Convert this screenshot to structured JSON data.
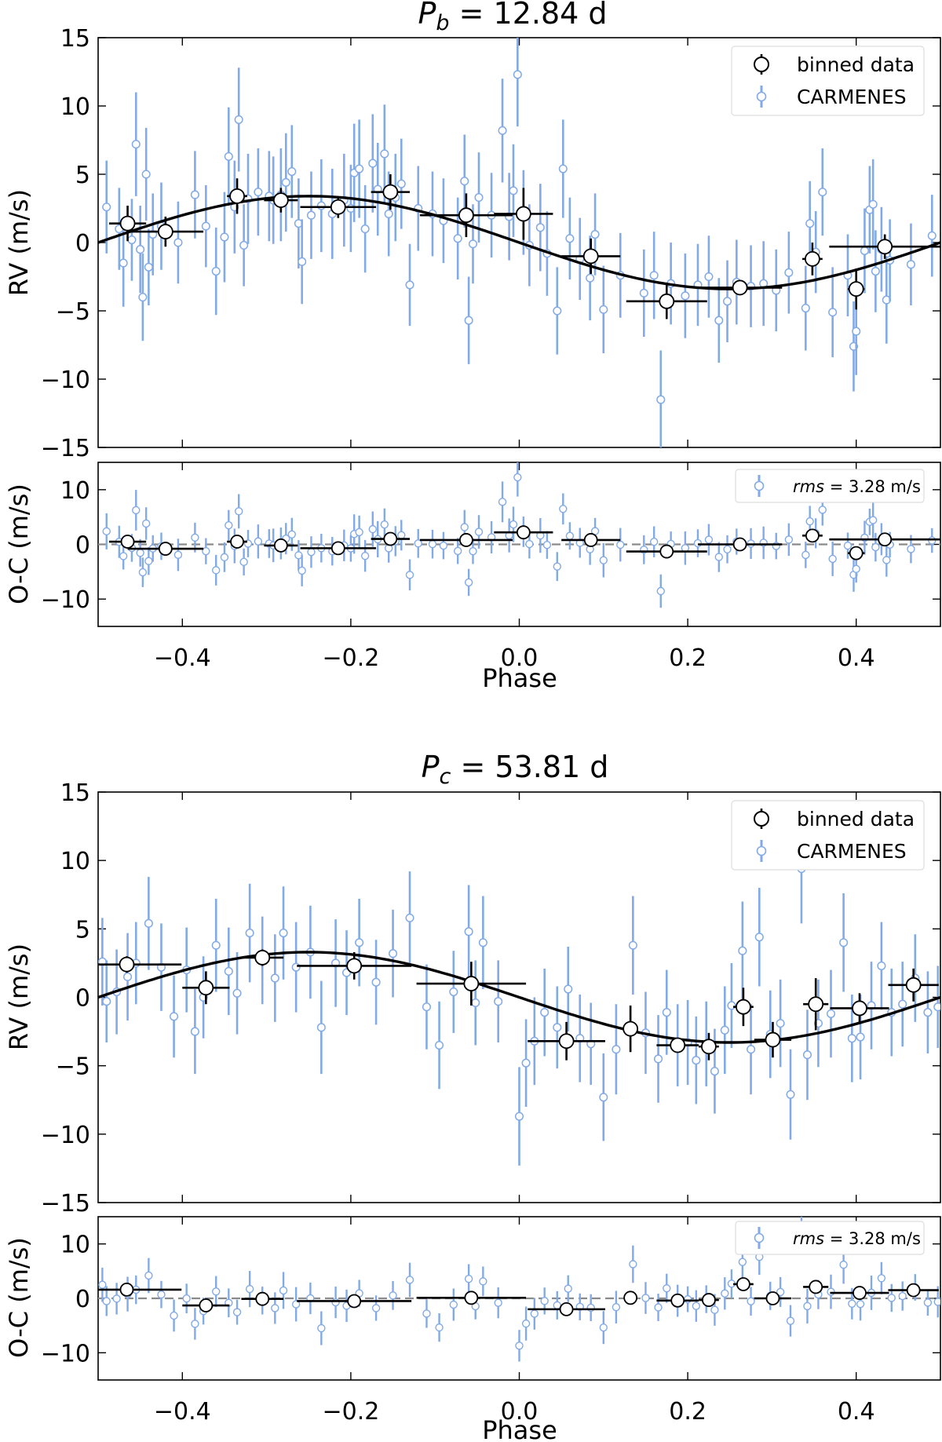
{
  "chart_data": [
    {
      "type": "scatter",
      "title": {
        "variable": "P",
        "subscript": "b",
        "rest": " = 12.84 d"
      },
      "xlabel": "Phase",
      "ylabel_main": "RV (m/s)",
      "ylabel_resid": "O-C (m/s)",
      "xlim": [
        -0.5,
        0.5
      ],
      "ylim_main": [
        -15,
        15
      ],
      "ylim_resid": [
        -15,
        15
      ],
      "x_ticks": [
        -0.4,
        -0.2,
        0.0,
        0.2,
        0.4
      ],
      "x_tick_labels": [
        "−0.4",
        "−0.2",
        "0.0",
        "0.2",
        "0.4"
      ],
      "y_ticks_main": [
        -15,
        -10,
        -5,
        0,
        5,
        10,
        15
      ],
      "y_tick_labels_main": [
        "−15",
        "−10",
        "−5",
        "0",
        "5",
        "10",
        "15"
      ],
      "y_ticks_resid": [
        -10,
        0,
        10
      ],
      "y_tick_labels_resid": [
        "−10",
        "0",
        "10"
      ],
      "model": {
        "amplitude": 3.4,
        "peak_phase": -0.25
      },
      "legend": {
        "binned_label": "binned data",
        "carmenes_label": "CARMENES"
      },
      "rms": {
        "prefix": "rms",
        "value": " = 3.28 m/s"
      },
      "binned": [
        {
          "x": -0.465,
          "xerr": 0.022,
          "y": 1.4,
          "yerr": 1.3,
          "oc": 0.5
        },
        {
          "x": -0.42,
          "xerr": 0.045,
          "y": 0.8,
          "yerr": 1.1,
          "oc": -0.8
        },
        {
          "x": -0.335,
          "xerr": 0.012,
          "y": 3.4,
          "yerr": 1.3,
          "oc": 0.5
        },
        {
          "x": -0.283,
          "xerr": 0.02,
          "y": 3.1,
          "yerr": 0.9,
          "oc": -0.2
        },
        {
          "x": -0.215,
          "xerr": 0.045,
          "y": 2.6,
          "yerr": 0.8,
          "oc": -0.7
        },
        {
          "x": -0.153,
          "xerr": 0.023,
          "y": 3.7,
          "yerr": 1.3,
          "oc": 1.0
        },
        {
          "x": -0.063,
          "xerr": 0.055,
          "y": 2.0,
          "yerr": 1.6,
          "oc": 0.8
        },
        {
          "x": 0.005,
          "xerr": 0.035,
          "y": 2.1,
          "yerr": 1.9,
          "oc": 2.2
        },
        {
          "x": 0.085,
          "xerr": 0.035,
          "y": -1.0,
          "yerr": 1.3,
          "oc": 0.8
        },
        {
          "x": 0.175,
          "xerr": 0.048,
          "y": -4.3,
          "yerr": 1.3,
          "oc": -1.3
        },
        {
          "x": 0.262,
          "xerr": 0.05,
          "y": -3.3,
          "yerr": 0.5,
          "oc": 0.0
        },
        {
          "x": 0.348,
          "xerr": 0.012,
          "y": -1.2,
          "yerr": 1.2,
          "oc": 1.6
        },
        {
          "x": 0.4,
          "xerr": 0.01,
          "y": -3.4,
          "yerr": 1.5,
          "oc": -1.6
        },
        {
          "x": 0.434,
          "xerr": 0.066,
          "y": -0.3,
          "yerr": 0.9,
          "oc": 0.9
        }
      ],
      "carmenes": [
        [
          -0.49,
          2.6,
          3.4
        ],
        [
          -0.475,
          1.0,
          3.0
        ],
        [
          -0.47,
          -1.5,
          3.2
        ],
        [
          -0.46,
          0.2,
          3.0
        ],
        [
          -0.455,
          7.2,
          3.8
        ],
        [
          -0.45,
          -0.5,
          3.2
        ],
        [
          -0.447,
          -4.0,
          3.2
        ],
        [
          -0.443,
          5.0,
          3.4
        ],
        [
          -0.44,
          -1.8,
          2.8
        ],
        [
          -0.435,
          0.6,
          3.0
        ],
        [
          -0.425,
          1.2,
          3.2
        ],
        [
          -0.405,
          0.0,
          3.0
        ],
        [
          -0.385,
          3.5,
          3.2
        ],
        [
          -0.372,
          1.2,
          3.0
        ],
        [
          -0.36,
          -2.1,
          3.2
        ],
        [
          -0.35,
          0.4,
          3.3
        ],
        [
          -0.345,
          6.3,
          3.6
        ],
        [
          -0.338,
          2.6,
          3.4
        ],
        [
          -0.333,
          9.0,
          3.8
        ],
        [
          -0.327,
          -0.2,
          3.0
        ],
        [
          -0.322,
          3.2,
          3.3
        ],
        [
          -0.31,
          3.7,
          3.2
        ],
        [
          -0.297,
          3.4,
          3.3
        ],
        [
          -0.292,
          3.1,
          3.2
        ],
        [
          -0.283,
          3.5,
          3.4
        ],
        [
          -0.277,
          4.4,
          3.6
        ],
        [
          -0.27,
          5.2,
          3.4
        ],
        [
          -0.262,
          1.4,
          3.3
        ],
        [
          -0.258,
          -1.4,
          3.1
        ],
        [
          -0.247,
          2.0,
          3.2
        ],
        [
          -0.235,
          2.7,
          3.4
        ],
        [
          -0.222,
          2.1,
          3.3
        ],
        [
          -0.208,
          3.1,
          3.4
        ],
        [
          -0.2,
          2.5,
          3.2
        ],
        [
          -0.196,
          5.1,
          3.6
        ],
        [
          -0.19,
          5.4,
          3.6
        ],
        [
          -0.183,
          1.0,
          3.2
        ],
        [
          -0.174,
          5.8,
          3.6
        ],
        [
          -0.168,
          3.9,
          3.4
        ],
        [
          -0.16,
          6.5,
          3.6
        ],
        [
          -0.155,
          2.1,
          3.1
        ],
        [
          -0.147,
          3.3,
          3.2
        ],
        [
          -0.14,
          4.3,
          3.3
        ],
        [
          -0.13,
          -3.1,
          3.0
        ],
        [
          -0.12,
          2.5,
          3.1
        ],
        [
          -0.103,
          2.1,
          3.1
        ],
        [
          -0.09,
          1.6,
          3.1
        ],
        [
          -0.073,
          0.3,
          3.0
        ],
        [
          -0.065,
          4.5,
          3.4
        ],
        [
          -0.06,
          -5.7,
          3.2
        ],
        [
          -0.055,
          -0.1,
          2.9
        ],
        [
          -0.048,
          3.3,
          3.3
        ],
        [
          -0.033,
          2.0,
          3.1
        ],
        [
          -0.02,
          8.2,
          3.8
        ],
        [
          -0.012,
          1.9,
          3.2
        ],
        [
          -0.007,
          3.8,
          3.4
        ],
        [
          -0.002,
          12.3,
          3.8
        ],
        [
          0.005,
          2.2,
          3.1
        ],
        [
          0.012,
          -0.2,
          3.0
        ],
        [
          0.025,
          1.1,
          3.2
        ],
        [
          0.033,
          -0.8,
          3.1
        ],
        [
          0.045,
          -5.0,
          3.2
        ],
        [
          0.052,
          5.4,
          3.6
        ],
        [
          0.06,
          0.3,
          3.0
        ],
        [
          0.072,
          -1.2,
          3.0
        ],
        [
          0.084,
          -2.6,
          3.1
        ],
        [
          0.09,
          0.6,
          3.0
        ],
        [
          0.1,
          -4.9,
          3.2
        ],
        [
          0.12,
          -2.4,
          3.1
        ],
        [
          0.148,
          -3.7,
          3.2
        ],
        [
          0.16,
          -2.4,
          3.2
        ],
        [
          0.168,
          -11.5,
          3.6
        ],
        [
          0.18,
          -3.0,
          3.0
        ],
        [
          0.197,
          -3.9,
          3.1
        ],
        [
          0.212,
          -3.1,
          3.0
        ],
        [
          0.225,
          -2.5,
          3.0
        ],
        [
          0.237,
          -5.7,
          3.1
        ],
        [
          0.247,
          -4.3,
          3.0
        ],
        [
          0.258,
          -2.9,
          3.1
        ],
        [
          0.275,
          -3.2,
          3.0
        ],
        [
          0.29,
          -3.0,
          3.1
        ],
        [
          0.305,
          -3.5,
          3.0
        ],
        [
          0.32,
          -2.2,
          3.0
        ],
        [
          0.34,
          -4.8,
          3.1
        ],
        [
          0.345,
          1.4,
          3.1
        ],
        [
          0.352,
          -0.7,
          3.0
        ],
        [
          0.36,
          3.7,
          3.2
        ],
        [
          0.372,
          -5.1,
          3.3
        ],
        [
          0.39,
          -2.4,
          3.0
        ],
        [
          0.397,
          -7.6,
          3.3
        ],
        [
          0.4,
          -6.5,
          3.2
        ],
        [
          0.41,
          -0.6,
          3.1
        ],
        [
          0.416,
          2.4,
          3.2
        ],
        [
          0.42,
          2.8,
          3.3
        ],
        [
          0.423,
          -2.1,
          3.0
        ],
        [
          0.43,
          -0.5,
          3.1
        ],
        [
          0.436,
          -4.2,
          3.2
        ],
        [
          0.44,
          -1.3,
          3.0
        ],
        [
          0.465,
          -1.6,
          3.0
        ],
        [
          0.49,
          0.5,
          3.0
        ]
      ]
    },
    {
      "type": "scatter",
      "title": {
        "variable": "P",
        "subscript": "c",
        "rest": " = 53.81 d"
      },
      "xlabel": "Phase",
      "ylabel_main": "RV (m/s)",
      "ylabel_resid": "O-C (m/s)",
      "xlim": [
        -0.5,
        0.5
      ],
      "ylim_main": [
        -15,
        15
      ],
      "ylim_resid": [
        -15,
        15
      ],
      "x_ticks": [
        -0.4,
        -0.2,
        0.0,
        0.2,
        0.4
      ],
      "x_tick_labels": [
        "−0.4",
        "−0.2",
        "0.0",
        "0.2",
        "0.4"
      ],
      "y_ticks_main": [
        -15,
        -10,
        -5,
        0,
        5,
        10,
        15
      ],
      "y_tick_labels_main": [
        "−15",
        "−10",
        "−5",
        "0",
        "5",
        "10",
        "15"
      ],
      "y_ticks_resid": [
        -10,
        0,
        10
      ],
      "y_tick_labels_resid": [
        "−10",
        "0",
        "10"
      ],
      "model": {
        "amplitude": 3.3,
        "peak_phase": -0.25
      },
      "legend": {
        "binned_label": "binned data",
        "carmenes_label": "CARMENES"
      },
      "rms": {
        "prefix": "rms",
        "value": " = 3.28 m/s"
      },
      "binned": [
        {
          "x": -0.466,
          "xerr": 0.065,
          "y": 2.4,
          "yerr": 0.6,
          "oc": 1.6
        },
        {
          "x": -0.372,
          "xerr": 0.028,
          "y": 0.7,
          "yerr": 1.2,
          "oc": -1.3
        },
        {
          "x": -0.305,
          "xerr": 0.025,
          "y": 2.9,
          "yerr": 0.6,
          "oc": -0.1
        },
        {
          "x": -0.196,
          "xerr": 0.068,
          "y": 2.3,
          "yerr": 1.0,
          "oc": -0.5
        },
        {
          "x": -0.057,
          "xerr": 0.065,
          "y": 1.0,
          "yerr": 1.6,
          "oc": 0.1
        },
        {
          "x": 0.056,
          "xerr": 0.046,
          "y": -3.2,
          "yerr": 1.4,
          "oc": -2.0
        },
        {
          "x": 0.132,
          "xerr": 0.005,
          "y": -2.3,
          "yerr": 1.7,
          "oc": 0.1
        },
        {
          "x": 0.188,
          "xerr": 0.025,
          "y": -3.5,
          "yerr": 0.4,
          "oc": -0.4
        },
        {
          "x": 0.225,
          "xerr": 0.012,
          "y": -3.6,
          "yerr": 1.0,
          "oc": -0.3
        },
        {
          "x": 0.266,
          "xerr": 0.012,
          "y": -0.7,
          "yerr": 1.4,
          "oc": 2.6
        },
        {
          "x": 0.301,
          "xerr": 0.022,
          "y": -3.1,
          "yerr": 1.3,
          "oc": 0.0
        },
        {
          "x": 0.352,
          "xerr": 0.015,
          "y": -0.5,
          "yerr": 1.9,
          "oc": 2.1
        },
        {
          "x": 0.404,
          "xerr": 0.035,
          "y": -0.8,
          "yerr": 1.1,
          "oc": 1.0
        },
        {
          "x": 0.468,
          "xerr": 0.03,
          "y": 0.9,
          "yerr": 1.2,
          "oc": 1.5
        }
      ],
      "carmenes": [
        [
          -0.495,
          2.6,
          3.2
        ],
        [
          -0.49,
          -0.3,
          3.0
        ],
        [
          -0.478,
          0.4,
          3.1
        ],
        [
          -0.465,
          1.5,
          3.2
        ],
        [
          -0.455,
          2.5,
          3.0
        ],
        [
          -0.44,
          5.4,
          3.4
        ],
        [
          -0.425,
          2.2,
          3.2
        ],
        [
          -0.41,
          -1.4,
          3.0
        ],
        [
          -0.395,
          2.0,
          3.1
        ],
        [
          -0.385,
          -2.5,
          3.1
        ],
        [
          -0.375,
          0.0,
          3.0
        ],
        [
          -0.36,
          3.8,
          3.4
        ],
        [
          -0.345,
          1.9,
          3.2
        ],
        [
          -0.335,
          0.3,
          3.0
        ],
        [
          -0.32,
          4.7,
          3.6
        ],
        [
          -0.305,
          2.7,
          3.2
        ],
        [
          -0.29,
          1.4,
          3.2
        ],
        [
          -0.28,
          4.7,
          3.4
        ],
        [
          -0.265,
          2.2,
          3.3
        ],
        [
          -0.248,
          3.3,
          3.4
        ],
        [
          -0.235,
          -2.2,
          3.4
        ],
        [
          -0.218,
          2.5,
          3.2
        ],
        [
          -0.205,
          1.8,
          3.1
        ],
        [
          -0.19,
          4.0,
          3.2
        ],
        [
          -0.17,
          1.1,
          3.1
        ],
        [
          -0.15,
          3.2,
          3.2
        ],
        [
          -0.13,
          5.8,
          3.4
        ],
        [
          -0.11,
          -0.7,
          3.1
        ],
        [
          -0.095,
          -3.5,
          3.2
        ],
        [
          -0.078,
          0.4,
          3.0
        ],
        [
          -0.06,
          4.8,
          3.4
        ],
        [
          -0.052,
          -0.4,
          3.1
        ],
        [
          -0.043,
          4.0,
          3.4
        ],
        [
          -0.025,
          -0.3,
          3.0
        ],
        [
          0.0,
          -8.7,
          3.6
        ],
        [
          0.008,
          -4.8,
          3.2
        ],
        [
          0.018,
          -3.2,
          3.2
        ],
        [
          0.03,
          -1.1,
          3.2
        ],
        [
          0.045,
          -2.2,
          3.0
        ],
        [
          0.058,
          0.6,
          3.1
        ],
        [
          0.072,
          -3.0,
          3.2
        ],
        [
          0.085,
          -3.4,
          3.0
        ],
        [
          0.1,
          -7.3,
          3.2
        ],
        [
          0.115,
          -3.8,
          3.3
        ],
        [
          0.135,
          3.8,
          3.6
        ],
        [
          0.15,
          -2.6,
          3.0
        ],
        [
          0.165,
          -4.5,
          3.2
        ],
        [
          0.175,
          -1.1,
          3.1
        ],
        [
          0.188,
          -3.5,
          3.0
        ],
        [
          0.2,
          -3.3,
          3.1
        ],
        [
          0.21,
          -4.6,
          3.2
        ],
        [
          0.222,
          -3.4,
          3.1
        ],
        [
          0.232,
          -5.4,
          3.1
        ],
        [
          0.244,
          -2.4,
          3.2
        ],
        [
          0.252,
          -0.6,
          3.1
        ],
        [
          0.265,
          3.4,
          3.6
        ],
        [
          0.275,
          -3.8,
          3.3
        ],
        [
          0.285,
          4.4,
          3.6
        ],
        [
          0.298,
          -2.7,
          3.2
        ],
        [
          0.31,
          -1.9,
          3.2
        ],
        [
          0.322,
          -7.1,
          3.3
        ],
        [
          0.335,
          9.4,
          4.0
        ],
        [
          0.342,
          -4.2,
          3.3
        ],
        [
          0.355,
          -1.9,
          3.2
        ],
        [
          0.37,
          -1.2,
          3.2
        ],
        [
          0.385,
          4.0,
          3.6
        ],
        [
          0.395,
          -3.0,
          3.2
        ],
        [
          0.405,
          -2.9,
          3.1
        ],
        [
          0.418,
          -0.6,
          3.2
        ],
        [
          0.43,
          2.3,
          3.2
        ],
        [
          0.442,
          -1.1,
          3.2
        ],
        [
          0.455,
          -0.5,
          3.1
        ],
        [
          0.47,
          1.4,
          3.2
        ],
        [
          0.485,
          -1.1,
          3.0
        ],
        [
          0.497,
          -0.7,
          3.0
        ]
      ]
    }
  ]
}
